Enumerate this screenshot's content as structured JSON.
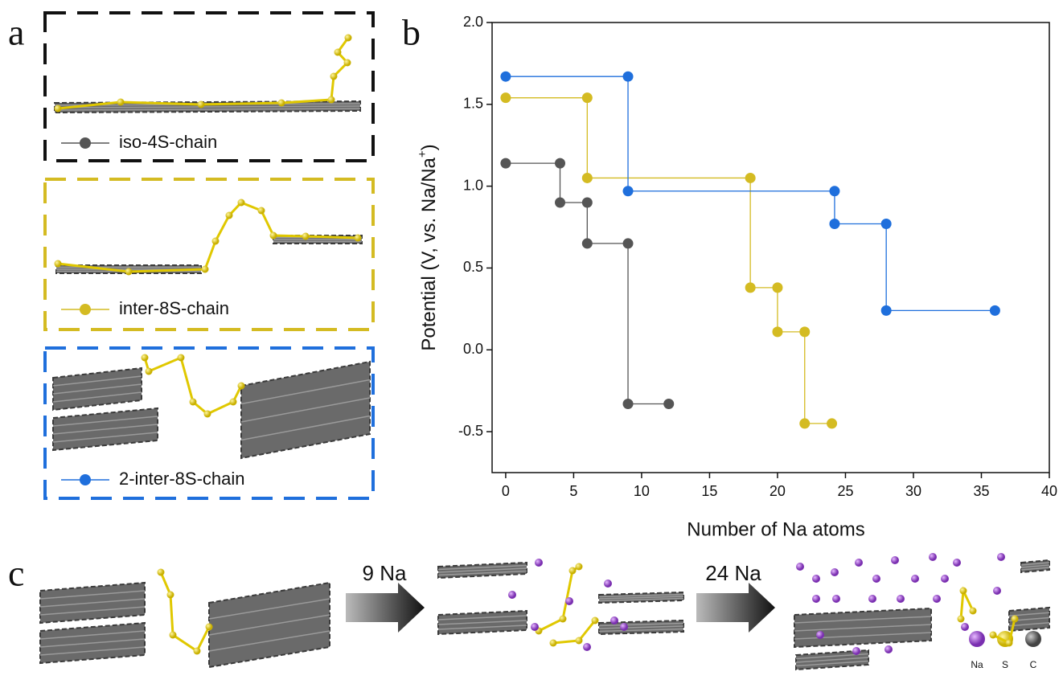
{
  "chart_data": {
    "type": "line",
    "xlabel": "Number of Na atoms",
    "ylabel": "Potential (V, vs. Na/Na",
    "ylabel_sup": "+",
    "ylabel_end": ")",
    "xlim": [
      -1,
      40
    ],
    "ylim": [
      -0.75,
      2.0
    ],
    "xticks": [
      0,
      5,
      10,
      15,
      20,
      25,
      30,
      35,
      40
    ],
    "yticks": [
      -0.5,
      {
        "value": 0,
        "label": "0.0"
      },
      0.5,
      {
        "value": 1,
        "label": "1.0"
      },
      1.5,
      {
        "value": 2,
        "label": "2.0"
      }
    ],
    "series": [
      {
        "name": "iso-4S-chain",
        "color": "#555555",
        "x": [
          0,
          4,
          4,
          6,
          6,
          9,
          9,
          12
        ],
        "values": [
          1.14,
          1.14,
          0.9,
          0.9,
          0.65,
          0.65,
          -0.33,
          -0.33
        ]
      },
      {
        "name": "inter-8S-chain",
        "color": "#d4bb22",
        "x": [
          0,
          6,
          6,
          18,
          18,
          20,
          20,
          22,
          22,
          24
        ],
        "values": [
          1.54,
          1.54,
          1.05,
          1.05,
          0.38,
          0.38,
          0.11,
          0.11,
          -0.45,
          -0.45
        ]
      },
      {
        "name": "2-inter-8S-chain",
        "color": "#1f6fdc",
        "x": [
          0,
          9,
          9,
          24.2,
          24.2,
          28,
          28,
          36
        ],
        "values": [
          1.67,
          1.67,
          0.97,
          0.97,
          0.77,
          0.77,
          0.24,
          0.24
        ]
      }
    ]
  },
  "panel_labels": [
    "a",
    "b",
    "c"
  ],
  "arrows": [
    "9 Na",
    "24 Na"
  ],
  "atom_legend": [
    "Na",
    "S",
    "C"
  ]
}
